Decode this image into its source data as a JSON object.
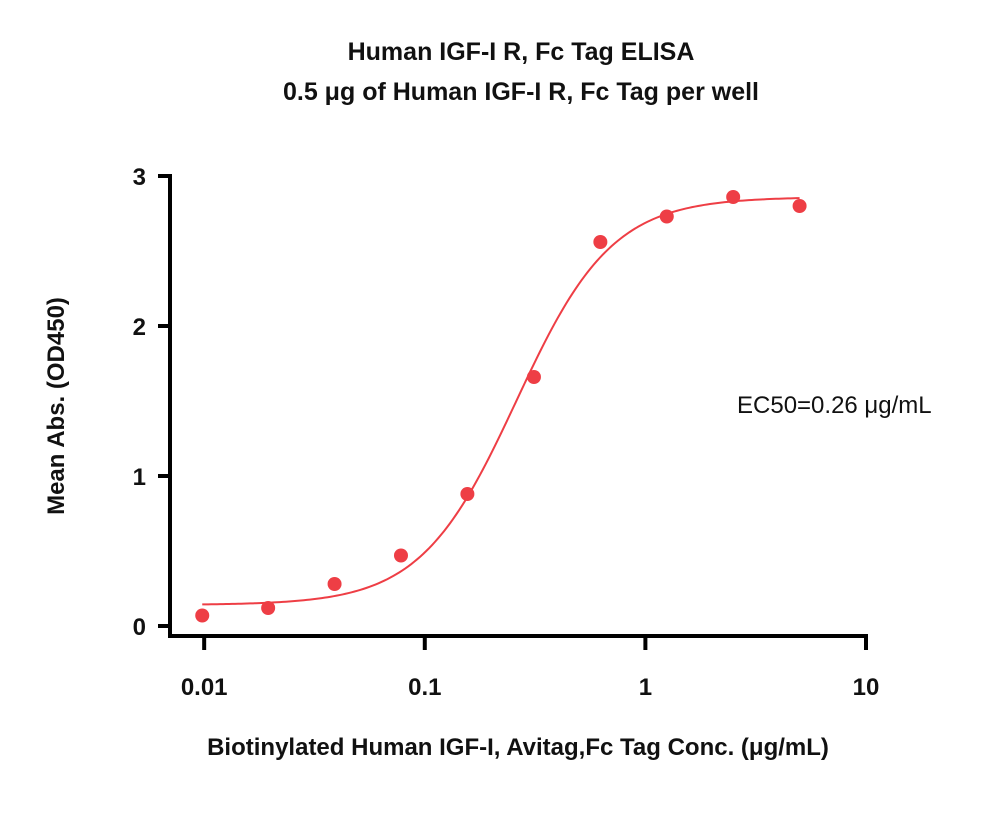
{
  "chart_data": {
    "type": "scatter",
    "title": "Human IGF-I R, Fc Tag ELISA",
    "subtitle": "0.5 μg of Human IGF-I R, Fc Tag per well",
    "xlabel": "Biotinylated Human IGF-I, Avitag,Fc Tag Conc. (μg/mL)",
    "ylabel": "Mean Abs. (OD450)",
    "x_scale": "log",
    "xlim": [
      0.007,
      10
    ],
    "ylim": [
      0,
      3
    ],
    "x_ticks": [
      0.01,
      0.1,
      1,
      10
    ],
    "x_tick_labels": [
      "0.01",
      "0.1",
      "1",
      "10"
    ],
    "y_ticks": [
      0,
      1,
      2,
      3
    ],
    "y_tick_labels": [
      "0",
      "1",
      "2",
      "3"
    ],
    "grid": false,
    "legend": "none",
    "annotation": "EC50=0.26 μg/mL",
    "series": [
      {
        "x": [
          0.0098,
          0.0195,
          0.039,
          0.078,
          0.156,
          0.3125,
          0.625,
          1.25,
          2.5,
          5
        ],
        "y": [
          0.07,
          0.12,
          0.28,
          0.47,
          0.88,
          1.66,
          2.56,
          2.73,
          2.86,
          2.8
        ],
        "color": "#ee3e45",
        "fit": {
          "model": "4PL",
          "bottom": 0.14,
          "top": 2.86,
          "ec50": 0.26,
          "hill": 2.0,
          "x_range": [
            0.0098,
            5
          ]
        }
      }
    ]
  }
}
